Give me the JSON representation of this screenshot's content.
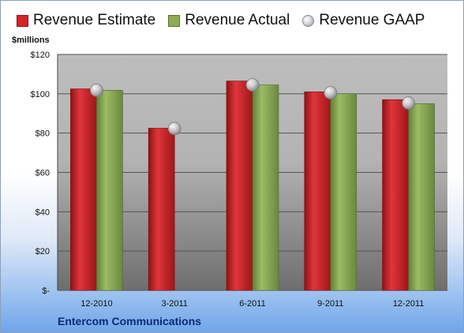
{
  "unit_label": "$millions",
  "company": "Entercom Communications",
  "colors": {
    "estimate": "#d62426",
    "actual": "#8fad55",
    "gaap": "#c8c8d0"
  },
  "chart_data": {
    "type": "bar",
    "categories": [
      "12-2010",
      "3-2011",
      "6-2011",
      "9-2011",
      "12-2011"
    ],
    "series": [
      {
        "name": "Revenue Estimate",
        "type": "bar",
        "values": [
          102.5,
          82.5,
          106.5,
          101,
          97
        ]
      },
      {
        "name": "Revenue Actual",
        "type": "bar",
        "values": [
          101.8,
          null,
          104.5,
          100,
          95
        ]
      },
      {
        "name": "Revenue GAAP",
        "type": "scatter",
        "values": [
          101.8,
          82.3,
          104.5,
          100.5,
          95.3
        ]
      }
    ],
    "ylim": [
      0,
      120
    ],
    "yticks": [
      0,
      20,
      40,
      60,
      80,
      100,
      120
    ],
    "ytick_labels": [
      "$-",
      "$20",
      "$40",
      "$60",
      "$80",
      "$100",
      "$120"
    ],
    "grid": true,
    "legend_position": "top"
  }
}
